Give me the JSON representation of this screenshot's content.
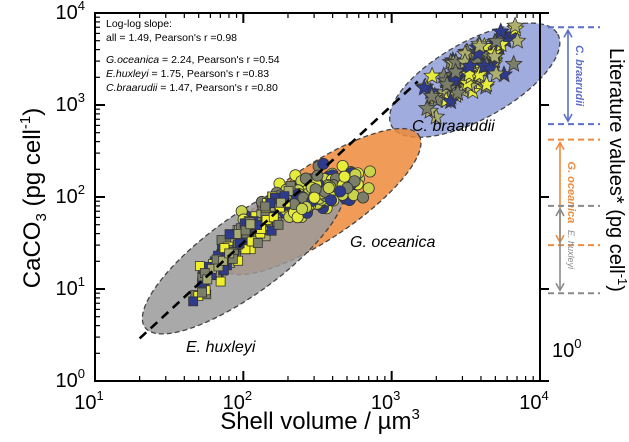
{
  "chart_data": {
    "type": "scatter",
    "xscale": "log",
    "yscale": "log",
    "xlim": [
      10,
      10000
    ],
    "ylim": [
      1,
      10000
    ],
    "xlabel_main": "Shell volume / ",
    "xlabel_unit": "µm",
    "xlabel_exp": "3",
    "ylabel_a": "CaCO",
    "ylabel_sub": "3",
    "ylabel_b": " (pg cell",
    "ylabel_sup": "-1",
    "ylabel_c": ")",
    "right_label_a": "Literature values* (pg cell",
    "right_label_sup": "-1",
    "right_label_b": ")",
    "right_tick_label": "10",
    "right_tick_exp": "0",
    "x_ticks": [
      {
        "base": "10",
        "exp": "1",
        "value": 10
      },
      {
        "base": "10",
        "exp": "2",
        "value": 100
      },
      {
        "base": "10",
        "exp": "3",
        "value": 1000
      },
      {
        "base": "10",
        "exp": "4",
        "value": 10000
      }
    ],
    "y_ticks": [
      {
        "base": "10",
        "exp": "0",
        "value": 1
      },
      {
        "base": "10",
        "exp": "1",
        "value": 10
      },
      {
        "base": "10",
        "exp": "2",
        "value": 100
      },
      {
        "base": "10",
        "exp": "3",
        "value": 1000
      },
      {
        "base": "10",
        "exp": "4",
        "value": 10000
      }
    ],
    "annotation": {
      "line1": "Log-log slope:",
      "line2": "all = 1.49, Pearson's r =0.98",
      "line3_species": "G.oceanica",
      "line3_rest": " = 2.24, Pearson's r =0.54",
      "line4_species": "E.huxleyi",
      "line4_rest": " = 1.75, Pearson's r =0.83",
      "line5_species": "C.braarudii",
      "line5_rest": " = 1.47, Pearson's r =0.80"
    },
    "species_labels": {
      "braarudii": "C. braarudii",
      "oceanica": "G. oceanica",
      "huxleyi": "E. huxleyi"
    },
    "literature_ranges": [
      {
        "name": "C. braarudii",
        "low": 620,
        "high": 7000,
        "color": "#5a6fc8"
      },
      {
        "name": "G. oceanica",
        "low": 30,
        "high": 420,
        "color": "#ef8a3c"
      },
      {
        "name": "E. huxleyi",
        "low": 9,
        "high": 80,
        "color": "#8a8a8a"
      }
    ],
    "fit_line": {
      "slope": 1.49,
      "x_start": 20,
      "x_end": 1500,
      "y_at_x_start": 2.9
    },
    "ellipses": [
      {
        "group": "braarudii",
        "fill": "#8f9ed8",
        "cx_log": 3.56,
        "cy_log": 3.27,
        "rx_log": 0.64,
        "ry_log": 0.42,
        "angle_deg": -29
      },
      {
        "group": "oceanica",
        "fill": "#ef8a3c",
        "cx_log": 2.52,
        "cy_log": 1.95,
        "rx_log": 0.8,
        "ry_log": 0.4,
        "angle_deg": -34
      },
      {
        "group": "huxleyi",
        "fill": "#9a9a9a",
        "cx_log": 2.0,
        "cy_log": 1.36,
        "rx_log": 0.82,
        "ry_log": 0.42,
        "angle_deg": -36
      }
    ],
    "series": [
      {
        "name": "C. braarudii",
        "marker": "star",
        "colors": [
          "#2e3a8c",
          "#e6ec3a",
          "#7b7f6a",
          "#aeb070"
        ],
        "center_log_x": 3.55,
        "center_log_y": 3.38,
        "spread_x": 0.25,
        "spread_y": 0.22,
        "slope": 1.1,
        "count": 110
      },
      {
        "name": "G. oceanica",
        "marker": "circle",
        "colors": [
          "#2e3a8c",
          "#e6ec3a",
          "#7b7f6a",
          "#c9d44a"
        ],
        "center_log_x": 2.45,
        "center_log_y": 2.05,
        "spread_x": 0.3,
        "spread_y": 0.18,
        "slope": 0.55,
        "count": 200
      },
      {
        "name": "E. huxleyi",
        "marker": "square",
        "colors": [
          "#2e3a8c",
          "#f0f02a",
          "#7b7f6a",
          "#a8ab72"
        ],
        "center_log_x": 1.95,
        "center_log_y": 1.45,
        "spread_x": 0.28,
        "spread_y": 0.18,
        "slope": 1.6,
        "count": 160
      }
    ]
  }
}
